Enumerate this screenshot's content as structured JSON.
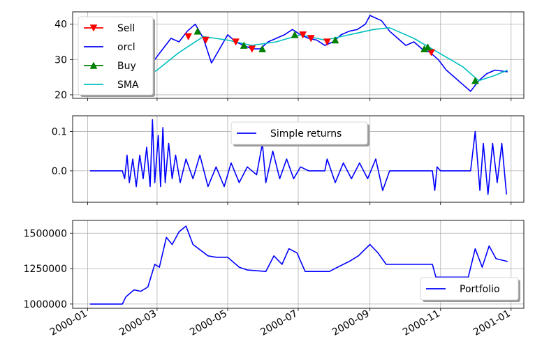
{
  "colors": {
    "sell": "#ff0000",
    "orcl": "#0000ff",
    "buy": "#008000",
    "sma": "#00bfbf",
    "returns": "#0000ff",
    "portfolio": "#0000ff",
    "grid": "#b0b0b0"
  },
  "chart_data": [
    {
      "type": "line",
      "panel": "price",
      "xlim": [
        "1999-12-19",
        "2001-01-12"
      ],
      "ylim": [
        19,
        43.5
      ],
      "yticks": [
        20,
        30,
        40
      ],
      "grid": true,
      "legend_position": "upper-left",
      "series": [
        {
          "name": "orcl",
          "type": "line",
          "points": [
            [
              "2000-01-03",
              29.5
            ],
            [
              "2000-01-10",
              24
            ],
            [
              "2000-01-18",
              25
            ],
            [
              "2000-01-24",
              23
            ],
            [
              "2000-01-31",
              22.5
            ],
            [
              "2000-02-07",
              24
            ],
            [
              "2000-02-14",
              26
            ],
            [
              "2000-02-21",
              27
            ],
            [
              "2000-02-28",
              30
            ],
            [
              "2000-03-06",
              33
            ],
            [
              "2000-03-13",
              36
            ],
            [
              "2000-03-20",
              35
            ],
            [
              "2000-03-27",
              38
            ],
            [
              "2000-04-03",
              40
            ],
            [
              "2000-04-10",
              36
            ],
            [
              "2000-04-17",
              29
            ],
            [
              "2000-04-24",
              33
            ],
            [
              "2000-05-01",
              37
            ],
            [
              "2000-05-08",
              35
            ],
            [
              "2000-05-15",
              34
            ],
            [
              "2000-05-22",
              33
            ],
            [
              "2000-05-29",
              33
            ],
            [
              "2000-06-05",
              35
            ],
            [
              "2000-06-12",
              36
            ],
            [
              "2000-06-19",
              37
            ],
            [
              "2000-06-26",
              38.5
            ],
            [
              "2000-07-03",
              37
            ],
            [
              "2000-07-10",
              36
            ],
            [
              "2000-07-17",
              35.5
            ],
            [
              "2000-07-24",
              34
            ],
            [
              "2000-07-31",
              35
            ],
            [
              "2000-08-07",
              37
            ],
            [
              "2000-08-14",
              38
            ],
            [
              "2000-08-21",
              38.5
            ],
            [
              "2000-08-28",
              40
            ],
            [
              "2000-09-01",
              42.5
            ],
            [
              "2000-09-11",
              41
            ],
            [
              "2000-09-18",
              38
            ],
            [
              "2000-09-25",
              36
            ],
            [
              "2000-10-02",
              34
            ],
            [
              "2000-10-09",
              35
            ],
            [
              "2000-10-16",
              33
            ],
            [
              "2000-10-23",
              32
            ],
            [
              "2000-10-30",
              30
            ],
            [
              "2000-11-06",
              27
            ],
            [
              "2000-11-13",
              25
            ],
            [
              "2000-11-20",
              23
            ],
            [
              "2000-11-27",
              21
            ],
            [
              "2000-12-04",
              24
            ],
            [
              "2000-12-11",
              26
            ],
            [
              "2000-12-18",
              27
            ],
            [
              "2000-12-29",
              26.5
            ]
          ]
        },
        {
          "name": "SMA",
          "type": "line",
          "points": [
            [
              "2000-02-14",
              24
            ],
            [
              "2000-03-01",
              27
            ],
            [
              "2000-03-20",
              32
            ],
            [
              "2000-04-10",
              36.5
            ],
            [
              "2000-05-01",
              35.5
            ],
            [
              "2000-05-22",
              34
            ],
            [
              "2000-06-12",
              35
            ],
            [
              "2000-07-03",
              37
            ],
            [
              "2000-07-24",
              35.5
            ],
            [
              "2000-08-14",
              37
            ],
            [
              "2000-09-04",
              38.5
            ],
            [
              "2000-09-18",
              39
            ],
            [
              "2000-10-09",
              36
            ],
            [
              "2000-10-30",
              32
            ],
            [
              "2000-11-20",
              28
            ],
            [
              "2000-12-04",
              24
            ],
            [
              "2000-12-18",
              25.5
            ],
            [
              "2000-12-29",
              27
            ]
          ]
        },
        {
          "name": "Sell",
          "type": "scatter",
          "marker": "triangle-down",
          "points": [
            [
              "2000-03-28",
              36.5
            ],
            [
              "2000-04-12",
              35.5
            ],
            [
              "2000-05-08",
              35
            ],
            [
              "2000-05-22",
              33
            ],
            [
              "2000-07-05",
              37
            ],
            [
              "2000-07-12",
              36
            ],
            [
              "2000-07-26",
              35
            ],
            [
              "2000-10-24",
              32
            ]
          ]
        },
        {
          "name": "Buy",
          "type": "scatter",
          "marker": "triangle-up",
          "points": [
            [
              "2000-04-05",
              38
            ],
            [
              "2000-05-15",
              34
            ],
            [
              "2000-05-31",
              33
            ],
            [
              "2000-06-28",
              37
            ],
            [
              "2000-08-02",
              35.5
            ],
            [
              "2000-10-18",
              33
            ],
            [
              "2000-10-21",
              33.5
            ],
            [
              "2000-12-01",
              24
            ]
          ]
        }
      ]
    },
    {
      "type": "line",
      "panel": "returns",
      "xlim": [
        "1999-12-19",
        "2001-01-12"
      ],
      "ylim": [
        -0.08,
        0.14
      ],
      "yticks": [
        0.0,
        0.1
      ],
      "grid": true,
      "legend_position": "upper-center",
      "series": [
        {
          "name": "Simple returns",
          "points": [
            [
              "2000-01-03",
              0
            ],
            [
              "2000-01-31",
              0
            ],
            [
              "2000-02-02",
              -0.02
            ],
            [
              "2000-02-04",
              0.04
            ],
            [
              "2000-02-06",
              -0.03
            ],
            [
              "2000-02-09",
              0.03
            ],
            [
              "2000-02-12",
              -0.04
            ],
            [
              "2000-02-15",
              0.04
            ],
            [
              "2000-02-18",
              -0.02
            ],
            [
              "2000-02-21",
              0.06
            ],
            [
              "2000-02-24",
              -0.04
            ],
            [
              "2000-02-26",
              0.13
            ],
            [
              "2000-02-28",
              -0.03
            ],
            [
              "2000-03-02",
              0.09
            ],
            [
              "2000-03-04",
              -0.04
            ],
            [
              "2000-03-06",
              0.11
            ],
            [
              "2000-03-08",
              -0.03
            ],
            [
              "2000-03-11",
              0.07
            ],
            [
              "2000-03-14",
              -0.02
            ],
            [
              "2000-03-17",
              0.04
            ],
            [
              "2000-03-21",
              -0.03
            ],
            [
              "2000-03-26",
              0.03
            ],
            [
              "2000-04-01",
              -0.02
            ],
            [
              "2000-04-07",
              0.04
            ],
            [
              "2000-04-14",
              -0.04
            ],
            [
              "2000-04-21",
              0.01
            ],
            [
              "2000-04-28",
              -0.04
            ],
            [
              "2000-05-04",
              0.02
            ],
            [
              "2000-05-11",
              -0.03
            ],
            [
              "2000-05-18",
              0.01
            ],
            [
              "2000-05-26",
              -0.01
            ],
            [
              "2000-05-31",
              0.07
            ],
            [
              "2000-06-03",
              -0.03
            ],
            [
              "2000-06-09",
              0.05
            ],
            [
              "2000-06-15",
              -0.02
            ],
            [
              "2000-06-21",
              0.03
            ],
            [
              "2000-06-27",
              -0.02
            ],
            [
              "2000-07-03",
              0.01
            ],
            [
              "2000-07-10",
              0.0
            ],
            [
              "2000-07-17",
              0.0
            ],
            [
              "2000-07-24",
              0.0
            ],
            [
              "2000-07-26",
              0.03
            ],
            [
              "2000-08-02",
              -0.03
            ],
            [
              "2000-08-09",
              0.02
            ],
            [
              "2000-08-16",
              -0.02
            ],
            [
              "2000-08-23",
              0.02
            ],
            [
              "2000-08-30",
              -0.02
            ],
            [
              "2000-09-06",
              0.03
            ],
            [
              "2000-09-12",
              -0.05
            ],
            [
              "2000-09-18",
              0.0
            ],
            [
              "2000-10-25",
              0.0
            ],
            [
              "2000-10-27",
              -0.05
            ],
            [
              "2000-10-29",
              0.01
            ],
            [
              "2000-11-01",
              0.0
            ],
            [
              "2000-11-27",
              0.0
            ],
            [
              "2000-12-01",
              0.1
            ],
            [
              "2000-12-05",
              -0.05
            ],
            [
              "2000-12-08",
              0.07
            ],
            [
              "2000-12-12",
              -0.06
            ],
            [
              "2000-12-16",
              0.07
            ],
            [
              "2000-12-20",
              -0.03
            ],
            [
              "2000-12-24",
              0.07
            ],
            [
              "2000-12-28",
              -0.06
            ]
          ]
        }
      ]
    },
    {
      "type": "line",
      "panel": "portfolio",
      "xlim": [
        "1999-12-19",
        "2001-01-12"
      ],
      "ylim": [
        970000,
        1590000
      ],
      "yticks": [
        1000000,
        1250000,
        1500000
      ],
      "xticks": [
        "2000-01",
        "2000-03",
        "2000-05",
        "2000-07",
        "2000-09",
        "2000-11",
        "2001-01"
      ],
      "grid": true,
      "legend_position": "lower-right",
      "series": [
        {
          "name": "Portfolio",
          "points": [
            [
              "2000-01-03",
              1000000
            ],
            [
              "2000-01-31",
              1000000
            ],
            [
              "2000-02-03",
              1050000
            ],
            [
              "2000-02-10",
              1100000
            ],
            [
              "2000-02-16",
              1090000
            ],
            [
              "2000-02-22",
              1120000
            ],
            [
              "2000-02-28",
              1280000
            ],
            [
              "2000-03-03",
              1260000
            ],
            [
              "2000-03-09",
              1470000
            ],
            [
              "2000-03-14",
              1420000
            ],
            [
              "2000-03-20",
              1510000
            ],
            [
              "2000-03-26",
              1550000
            ],
            [
              "2000-04-01",
              1420000
            ],
            [
              "2000-04-14",
              1340000
            ],
            [
              "2000-04-21",
              1330000
            ],
            [
              "2000-05-01",
              1330000
            ],
            [
              "2000-05-11",
              1260000
            ],
            [
              "2000-05-18",
              1240000
            ],
            [
              "2000-06-03",
              1230000
            ],
            [
              "2000-06-10",
              1340000
            ],
            [
              "2000-06-17",
              1280000
            ],
            [
              "2000-06-23",
              1390000
            ],
            [
              "2000-06-30",
              1360000
            ],
            [
              "2000-07-07",
              1230000
            ],
            [
              "2000-07-28",
              1230000
            ],
            [
              "2000-08-04",
              1260000
            ],
            [
              "2000-08-14",
              1300000
            ],
            [
              "2000-08-22",
              1340000
            ],
            [
              "2000-09-01",
              1420000
            ],
            [
              "2000-09-08",
              1360000
            ],
            [
              "2000-09-15",
              1280000
            ],
            [
              "2000-10-25",
              1280000
            ],
            [
              "2000-10-28",
              1190000
            ],
            [
              "2000-11-25",
              1190000
            ],
            [
              "2000-12-01",
              1390000
            ],
            [
              "2000-12-07",
              1260000
            ],
            [
              "2000-12-13",
              1410000
            ],
            [
              "2000-12-19",
              1320000
            ],
            [
              "2000-12-29",
              1300000
            ]
          ]
        }
      ]
    }
  ],
  "legends": {
    "price": [
      "Sell",
      "orcl",
      "Buy",
      "SMA"
    ],
    "returns": [
      "Simple returns"
    ],
    "portfolio": [
      "Portfolio"
    ]
  },
  "tick_labels": {
    "price_y": [
      "20",
      "30",
      "40"
    ],
    "returns_y": [
      "0.0",
      "0.1"
    ],
    "portfolio_y": [
      "1000000",
      "1250000",
      "1500000"
    ],
    "x": [
      "2000-01",
      "2000-03",
      "2000-05",
      "2000-07",
      "2000-09",
      "2000-11",
      "2001-01"
    ]
  }
}
